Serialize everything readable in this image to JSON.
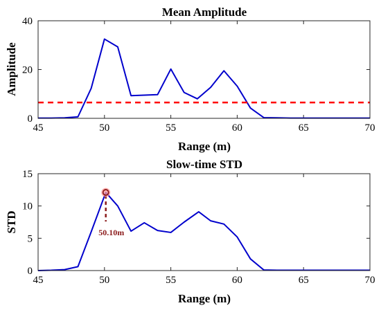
{
  "chart_data": [
    {
      "type": "line",
      "title": "Mean Amplitude",
      "xlabel": "Range (m)",
      "ylabel": "Amplitude",
      "xlim": [
        45,
        70
      ],
      "ylim": [
        0,
        40
      ],
      "xticks": [
        45,
        50,
        55,
        60,
        65,
        70
      ],
      "yticks": [
        0,
        20,
        40
      ],
      "grid": false,
      "series": [
        {
          "color": "#0000cc",
          "style": "solid",
          "x": [
            45,
            46,
            47,
            48,
            49,
            50,
            51,
            52,
            53,
            54,
            55,
            56,
            57,
            58,
            59,
            60,
            61,
            62,
            63,
            64,
            65,
            66,
            67,
            68,
            69,
            70
          ],
          "y": [
            0.1,
            0.1,
            0.2,
            0.6,
            12.3,
            32.5,
            29.3,
            9.3,
            9.5,
            9.7,
            20.2,
            10.6,
            8.0,
            12.7,
            19.5,
            13.2,
            4.2,
            0.3,
            0.2,
            0.1,
            0.1,
            0.1,
            0.1,
            0.1,
            0.1,
            0.1
          ]
        },
        {
          "color": "#ff0000",
          "style": "dashed",
          "x": [
            45,
            70
          ],
          "y": [
            6.5,
            6.5
          ]
        }
      ]
    },
    {
      "type": "line",
      "title": "Slow-time STD",
      "xlabel": "Range (m)",
      "ylabel": "STD",
      "xlim": [
        45,
        70
      ],
      "ylim": [
        0,
        15
      ],
      "xticks": [
        45,
        50,
        55,
        60,
        65,
        70
      ],
      "yticks": [
        0,
        5,
        10,
        15
      ],
      "grid": false,
      "series": [
        {
          "color": "#0000cc",
          "style": "solid",
          "x": [
            45,
            46,
            47,
            48,
            49,
            50.1,
            51,
            52,
            53,
            54,
            55,
            56,
            57.1,
            58,
            59,
            60,
            61,
            62,
            63,
            64,
            65,
            66,
            67,
            68,
            69,
            70
          ],
          "y": [
            0.0,
            0.05,
            0.15,
            0.6,
            6.0,
            12.1,
            10.0,
            6.1,
            7.4,
            6.2,
            5.9,
            7.5,
            9.1,
            7.7,
            7.2,
            5.2,
            1.8,
            0.1,
            0.05,
            0.05,
            0.05,
            0.05,
            0.05,
            0.05,
            0.05,
            0.05
          ]
        }
      ],
      "annotation": {
        "text": "50.10m",
        "x": 50.1,
        "y": 12.1,
        "marker_color": "#8b1a1a",
        "highlight_color": "#ff9a9a"
      }
    }
  ]
}
